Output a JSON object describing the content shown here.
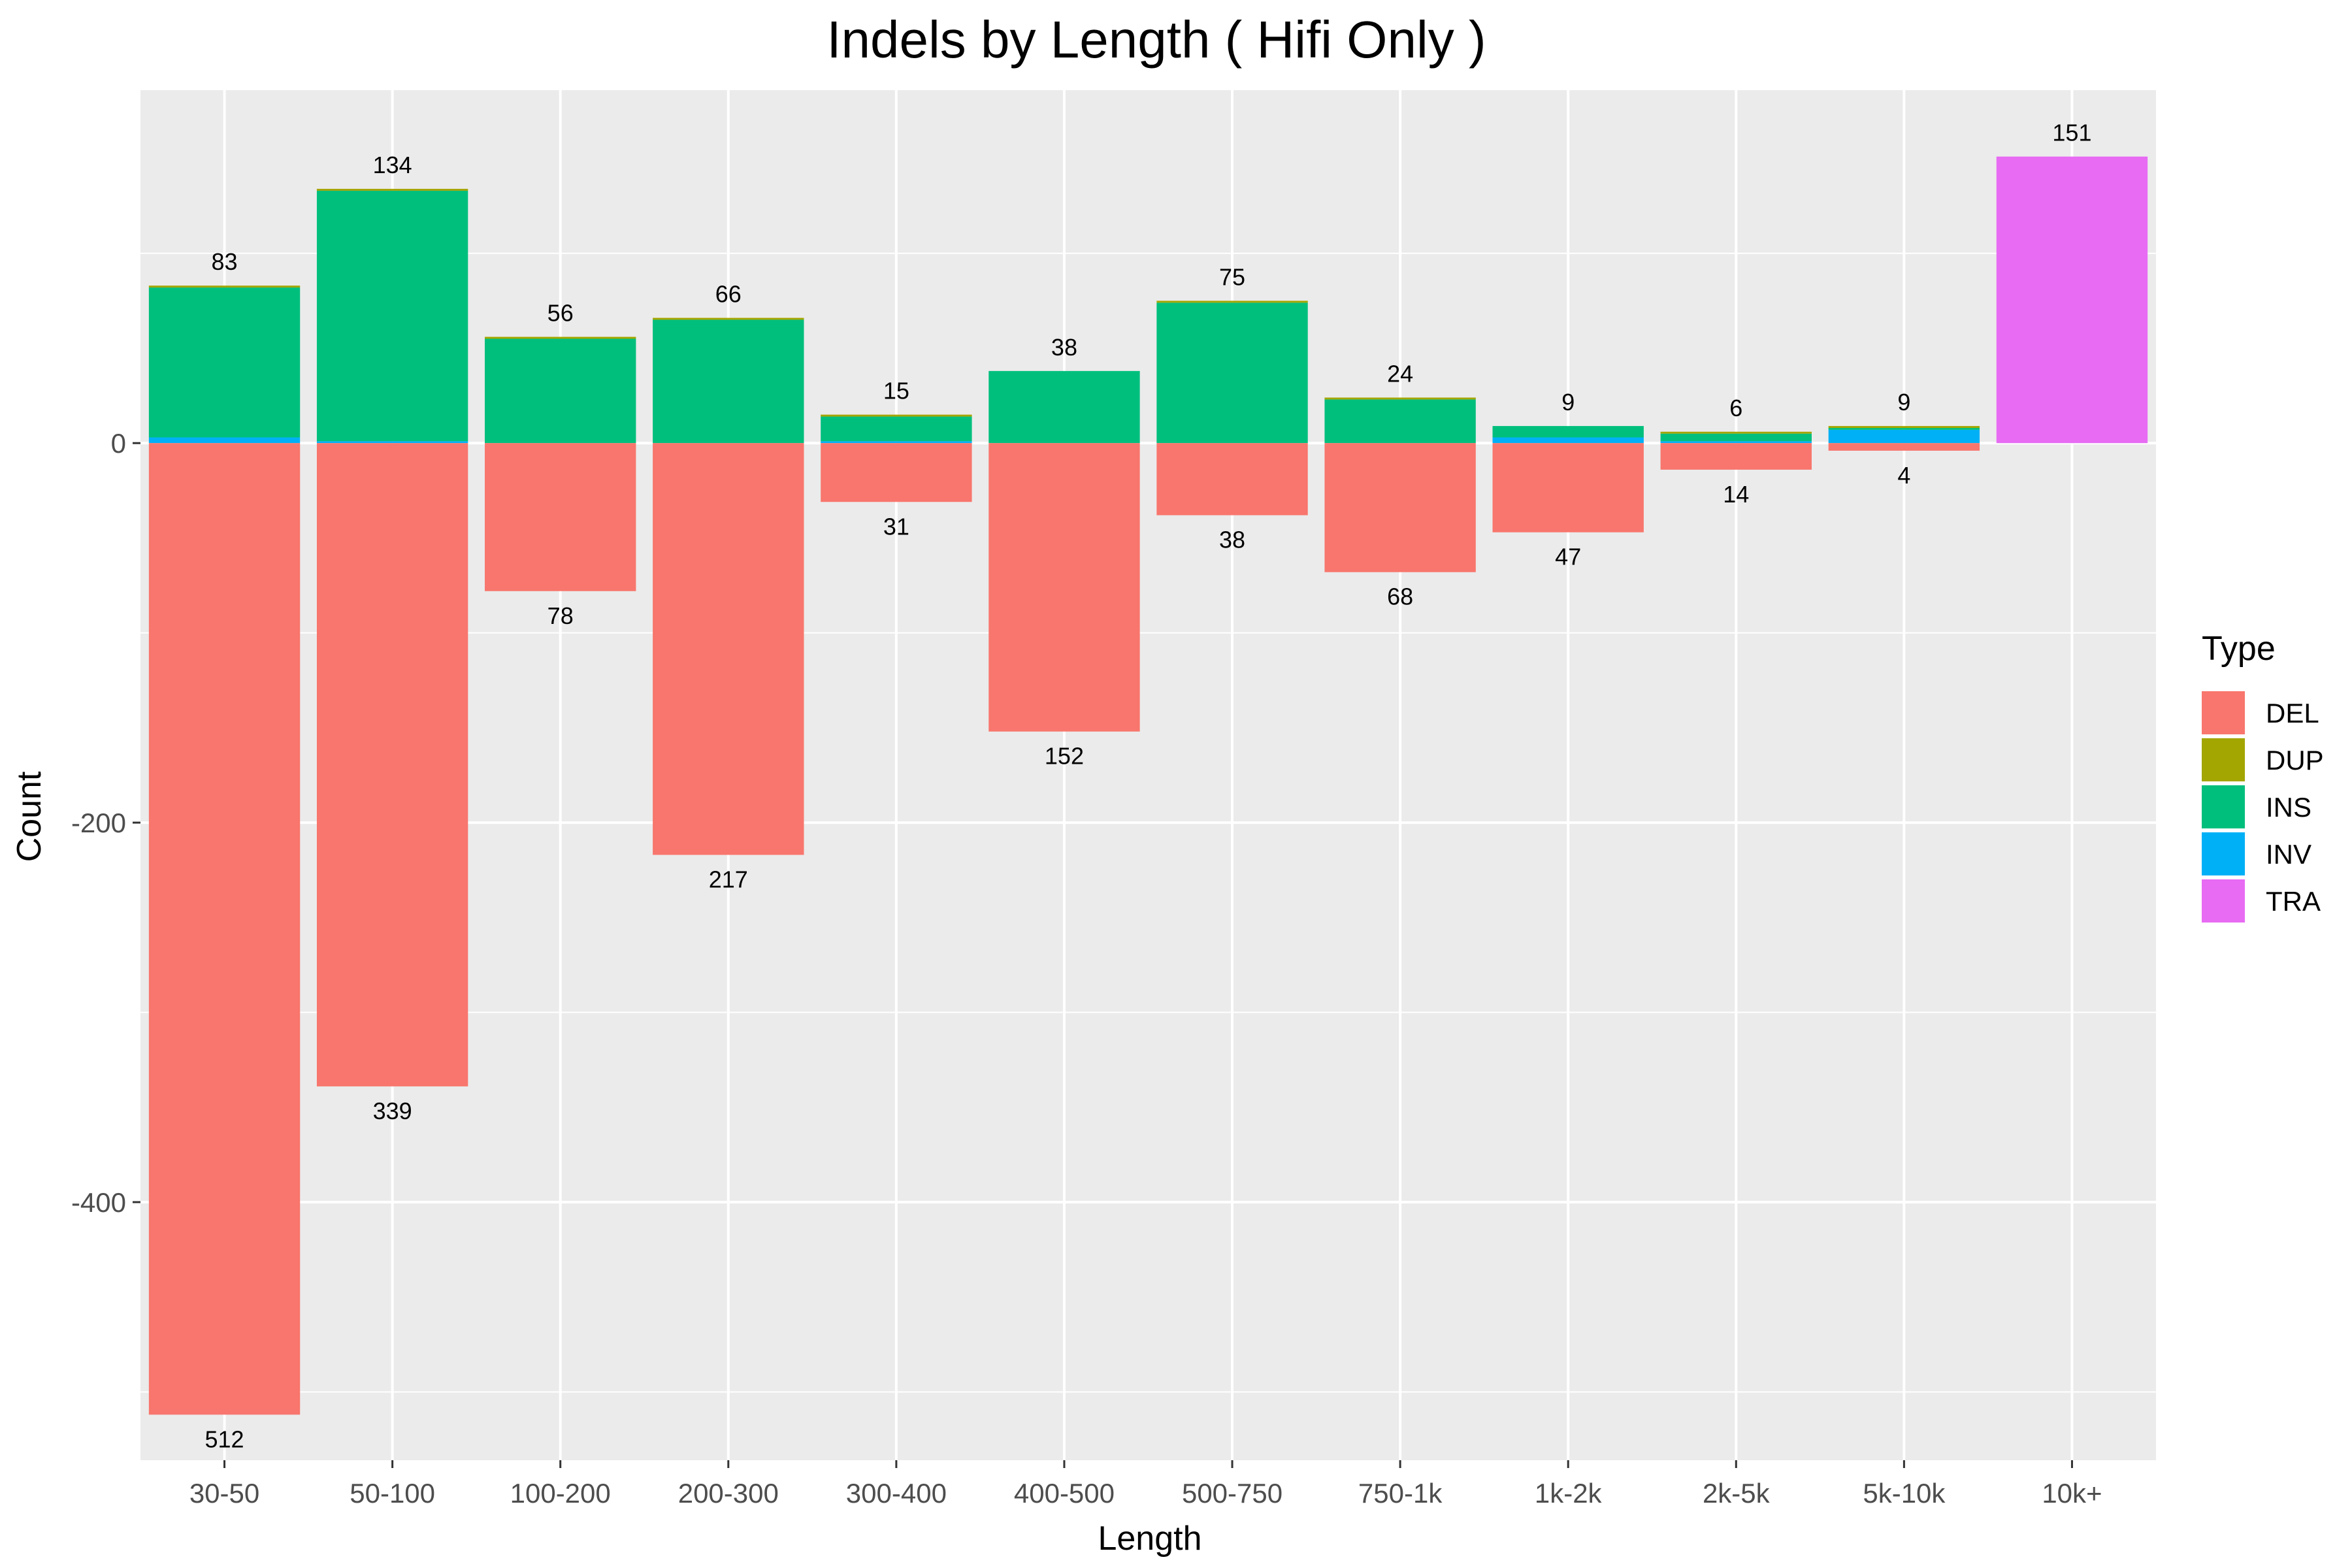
{
  "chart_data": {
    "type": "bar",
    "stacked": true,
    "title": "Indels by Length ( Hifi Only )",
    "xlabel": "Length",
    "ylabel": "Count",
    "categories": [
      "30-50",
      "50-100",
      "100-200",
      "200-300",
      "300-400",
      "400-500",
      "500-750",
      "750-1k",
      "1k-2k",
      "2k-5k",
      "5k-10k",
      "10k+"
    ],
    "ylim": [
      -536,
      186
    ],
    "yticks": [
      0,
      -200,
      -400
    ],
    "ytick_labels": [
      "0",
      "-200",
      "-400"
    ],
    "grid": true,
    "legend_title": "Type",
    "legend_position": "right",
    "series": [
      {
        "name": "DEL",
        "color": "#F8766D",
        "values": [
          -512,
          -339,
          -78,
          -217,
          -31,
          -152,
          -38,
          -68,
          -47,
          -14,
          -4,
          0
        ]
      },
      {
        "name": "DUP",
        "color": "#A3A500",
        "values": [
          1,
          1,
          1,
          1,
          1,
          0,
          1,
          1,
          0,
          1,
          1,
          0
        ]
      },
      {
        "name": "INS",
        "color": "#00BF7D",
        "values": [
          79,
          132,
          55,
          65,
          13,
          38,
          74,
          23,
          6,
          4,
          1,
          0
        ]
      },
      {
        "name": "INV",
        "color": "#00B0F6",
        "values": [
          3,
          1,
          0,
          0,
          1,
          0,
          0,
          0,
          3,
          1,
          7,
          0
        ]
      },
      {
        "name": "TRA",
        "color": "#E76BF3",
        "values": [
          0,
          0,
          0,
          0,
          0,
          0,
          0,
          0,
          0,
          0,
          0,
          151
        ]
      }
    ],
    "pos_labels": [
      "83",
      "134",
      "56",
      "66",
      "15",
      "38",
      "75",
      "24",
      "9",
      "6",
      "9",
      "151"
    ],
    "neg_labels": [
      "512",
      "339",
      "78",
      "217",
      "31",
      "152",
      "38",
      "68",
      "47",
      "14",
      "4",
      ""
    ]
  }
}
